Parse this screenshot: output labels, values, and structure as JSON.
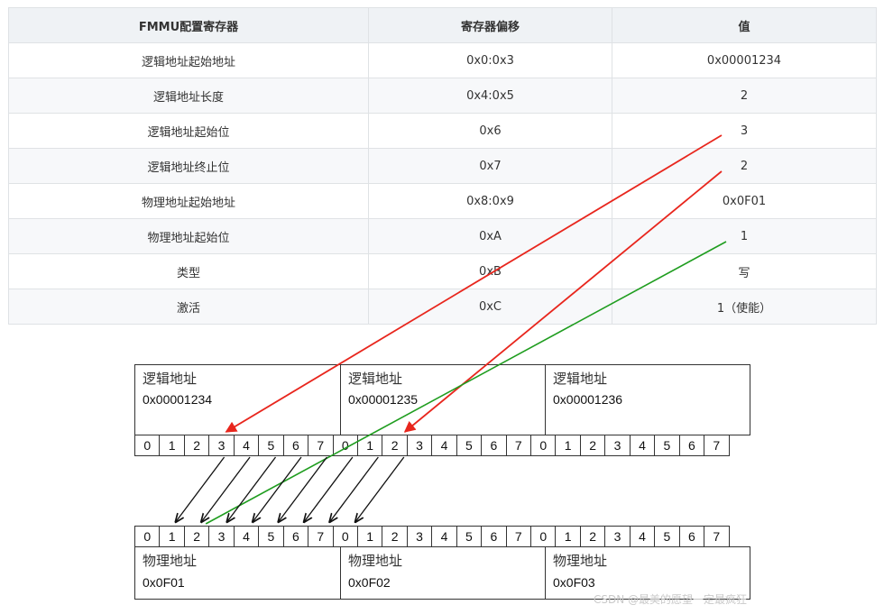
{
  "table": {
    "headers": [
      "FMMU配置寄存器",
      "寄存器偏移",
      "值"
    ],
    "rows": [
      [
        "逻辑地址起始地址",
        "0x0:0x3",
        "0x00001234"
      ],
      [
        "逻辑地址长度",
        "0x4:0x5",
        "2"
      ],
      [
        "逻辑地址起始位",
        "0x6",
        "3"
      ],
      [
        "逻辑地址终止位",
        "0x7",
        "2"
      ],
      [
        "物理地址起始地址",
        "0x8:0x9",
        "0x0F01"
      ],
      [
        "物理地址起始位",
        "0xA",
        "1"
      ],
      [
        "类型",
        "0xB",
        "写"
      ],
      [
        "激活",
        "0xC",
        "1（使能）"
      ]
    ]
  },
  "diagram": {
    "logical": [
      {
        "label": "逻辑地址",
        "address": "0x00001234"
      },
      {
        "label": "逻辑地址",
        "address": "0x00001235"
      },
      {
        "label": "逻辑地址",
        "address": "0x00001236"
      }
    ],
    "physical": [
      {
        "label": "物理地址",
        "address": "0x0F01"
      },
      {
        "label": "物理地址",
        "address": "0x0F02"
      },
      {
        "label": "物理地址",
        "address": "0x0F03"
      }
    ],
    "bits": [
      "0",
      "1",
      "2",
      "3",
      "4",
      "5",
      "6",
      "7",
      "0",
      "1",
      "2",
      "3",
      "4",
      "5",
      "6",
      "7",
      "0",
      "1",
      "2",
      "3",
      "4",
      "5",
      "6",
      "7"
    ],
    "colors": {
      "start_arrow": "#e8261d",
      "end_arrow": "#e8261d",
      "phys_arrow": "#1f9d1f",
      "map_arrow": "#111111"
    }
  },
  "watermark": "CSDN @最美的愿望一定最疯狂"
}
